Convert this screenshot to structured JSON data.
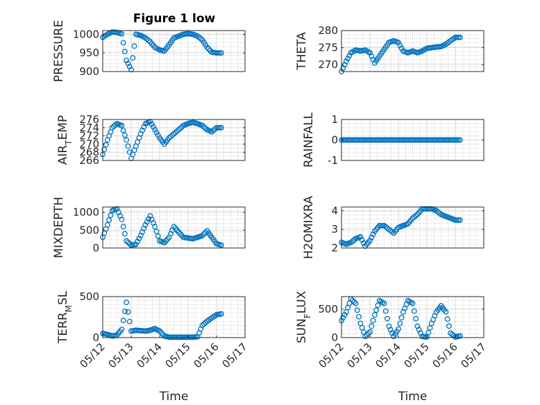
{
  "figure": {
    "title": "Figure 1 low"
  },
  "colors": {
    "marker": "#0072BD",
    "axes": "#262626",
    "grid": "#d9d9d9",
    "minor_grid": "#a6a6a6"
  },
  "chart_data": [
    {
      "type": "scatter",
      "title": "Figure 1 low",
      "xlabel": "",
      "ylabel": "PRESSURE",
      "xlim": [
        "05/12",
        "05/17"
      ],
      "ylim": [
        900,
        1010
      ],
      "yticks": [
        "900",
        "950",
        "1000"
      ],
      "grid": true,
      "x": [
        "05/12 00:00",
        "05/12 04:00",
        "05/12 08:00",
        "05/12 12:00",
        "05/12 16:00",
        "05/12 20:00",
        "05/13 00:00",
        "05/13 04:00",
        "05/13 08:00",
        "05/13 12:00",
        "05/13 16:00",
        "05/13 20:00",
        "05/14 00:00",
        "05/14 04:00",
        "05/14 08:00",
        "05/14 12:00",
        "05/14 16:00",
        "05/14 20:00",
        "05/15 00:00",
        "05/15 04:00",
        "05/15 08:00",
        "05/15 12:00",
        "05/15 16:00",
        "05/15 20:00",
        "05/16 00:00",
        "05/16 04:00"
      ],
      "y": [
        992,
        1000,
        1006,
        1005,
        1001,
        930,
        905,
        1000,
        997,
        990,
        980,
        965,
        958,
        955,
        972,
        990,
        995,
        1000,
        1002,
        1000,
        995,
        985,
        965,
        952,
        950,
        950
      ]
    },
    {
      "type": "scatter",
      "xlabel": "",
      "ylabel": "THETA",
      "xlim": [
        "05/12",
        "05/17"
      ],
      "ylim": [
        268,
        280
      ],
      "yticks": [
        "270",
        "275",
        "280"
      ],
      "grid": true,
      "x": [
        "05/12 00:00",
        "05/12 04:00",
        "05/12 08:00",
        "05/12 12:00",
        "05/12 16:00",
        "05/12 20:00",
        "05/13 00:00",
        "05/13 04:00",
        "05/13 08:00",
        "05/13 12:00",
        "05/13 16:00",
        "05/13 20:00",
        "05/14 00:00",
        "05/14 04:00",
        "05/14 08:00",
        "05/14 12:00",
        "05/14 16:00",
        "05/14 20:00",
        "05/15 00:00",
        "05/15 04:00",
        "05/15 08:00",
        "05/15 12:00",
        "05/15 16:00",
        "05/15 20:00",
        "05/16 00:00",
        "05/16 04:00"
      ],
      "y": [
        268,
        271,
        273.5,
        274.3,
        274.0,
        274.3,
        273.5,
        270.5,
        272.5,
        274.5,
        276.5,
        277.0,
        276.5,
        274.0,
        273.5,
        274.0,
        273.5,
        274.0,
        274.8,
        275.0,
        275.2,
        275.3,
        276.0,
        277.0,
        278.0,
        278.0
      ]
    },
    {
      "type": "scatter",
      "xlabel": "",
      "ylabel": "AIR_TEMP",
      "ylabel_parts": {
        "main": "AIR",
        "sub": "T",
        "rest": "EMP"
      },
      "xlim": [
        "05/12",
        "05/17"
      ],
      "ylim": [
        266,
        276
      ],
      "yticks": [
        "266",
        "268",
        "270",
        "272",
        "274",
        "276"
      ],
      "grid": true,
      "x": [
        "05/12 00:00",
        "05/12 04:00",
        "05/12 08:00",
        "05/12 12:00",
        "05/12 16:00",
        "05/12 20:00",
        "05/13 00:00",
        "05/13 04:00",
        "05/13 08:00",
        "05/13 12:00",
        "05/13 16:00",
        "05/13 20:00",
        "05/14 00:00",
        "05/14 04:00",
        "05/14 08:00",
        "05/14 12:00",
        "05/14 16:00",
        "05/14 20:00",
        "05/15 00:00",
        "05/15 04:00",
        "05/15 08:00",
        "05/15 12:00",
        "05/15 16:00",
        "05/15 20:00",
        "05/16 00:00",
        "05/16 04:00"
      ],
      "y": [
        267.5,
        271.0,
        274.0,
        275.0,
        274.5,
        271.0,
        266.5,
        269.5,
        272.5,
        275.0,
        275.5,
        273.5,
        271.5,
        270.0,
        271.5,
        272.5,
        273.5,
        274.5,
        275.0,
        275.3,
        275.0,
        274.5,
        273.5,
        273.0,
        274.0,
        274.0
      ]
    },
    {
      "type": "scatter",
      "xlabel": "",
      "ylabel": "RAINFALL",
      "xlim": [
        "05/12",
        "05/17"
      ],
      "ylim": [
        -1,
        1
      ],
      "yticks": [
        "-1",
        "0",
        "1"
      ],
      "grid": true,
      "x": [
        "05/12 00:00",
        "05/12 04:00",
        "05/12 08:00",
        "05/12 12:00",
        "05/12 16:00",
        "05/12 20:00",
        "05/13 00:00",
        "05/13 04:00",
        "05/13 08:00",
        "05/13 12:00",
        "05/13 16:00",
        "05/13 20:00",
        "05/14 00:00",
        "05/14 04:00",
        "05/14 08:00",
        "05/14 12:00",
        "05/14 16:00",
        "05/14 20:00",
        "05/15 00:00",
        "05/15 04:00",
        "05/15 08:00",
        "05/15 12:00",
        "05/15 16:00",
        "05/15 20:00",
        "05/16 00:00",
        "05/16 04:00"
      ],
      "y": [
        0,
        0,
        0,
        0,
        0,
        0,
        0,
        0,
        0,
        0,
        0,
        0,
        0,
        0,
        0,
        0,
        0,
        0,
        0,
        0,
        0,
        0,
        0,
        0,
        0,
        0
      ]
    },
    {
      "type": "scatter",
      "xlabel": "",
      "ylabel": "MIXDEPTH",
      "xlim": [
        "05/12",
        "05/17"
      ],
      "ylim": [
        0,
        1150
      ],
      "yticks": [
        "0",
        "500",
        "1000"
      ],
      "grid": true,
      "x": [
        "05/12 00:00",
        "05/12 04:00",
        "05/12 08:00",
        "05/12 12:00",
        "05/12 16:00",
        "05/12 20:00",
        "05/13 00:00",
        "05/13 04:00",
        "05/13 08:00",
        "05/13 12:00",
        "05/13 16:00",
        "05/13 20:00",
        "05/14 00:00",
        "05/14 04:00",
        "05/14 08:00",
        "05/14 12:00",
        "05/14 16:00",
        "05/14 20:00",
        "05/15 00:00",
        "05/15 04:00",
        "05/15 08:00",
        "05/15 12:00",
        "05/15 16:00",
        "05/15 20:00",
        "05/16 00:00",
        "05/16 04:00"
      ],
      "y": [
        300,
        650,
        1050,
        1100,
        800,
        200,
        80,
        100,
        350,
        650,
        900,
        600,
        200,
        150,
        300,
        600,
        450,
        300,
        280,
        260,
        300,
        350,
        480,
        300,
        120,
        80
      ]
    },
    {
      "type": "scatter",
      "xlabel": "",
      "ylabel": "H2OMIXRA",
      "xlim": [
        "05/12",
        "05/17"
      ],
      "ylim": [
        2,
        4.2
      ],
      "yticks": [
        "2",
        "3",
        "4"
      ],
      "grid": true,
      "x": [
        "05/12 00:00",
        "05/12 04:00",
        "05/12 08:00",
        "05/12 12:00",
        "05/12 16:00",
        "05/12 20:00",
        "05/13 00:00",
        "05/13 04:00",
        "05/13 08:00",
        "05/13 12:00",
        "05/13 16:00",
        "05/13 20:00",
        "05/14 00:00",
        "05/14 04:00",
        "05/14 08:00",
        "05/14 12:00",
        "05/14 16:00",
        "05/14 20:00",
        "05/15 00:00",
        "05/15 04:00",
        "05/15 08:00",
        "05/15 12:00",
        "05/15 16:00",
        "05/15 20:00",
        "05/16 00:00",
        "05/16 04:00"
      ],
      "y": [
        2.3,
        2.2,
        2.3,
        2.5,
        2.6,
        2.1,
        2.4,
        2.9,
        3.2,
        3.2,
        3.0,
        2.8,
        3.1,
        3.2,
        3.3,
        3.6,
        3.8,
        4.1,
        4.1,
        4.1,
        4.0,
        3.8,
        3.7,
        3.6,
        3.5,
        3.5
      ]
    },
    {
      "type": "scatter",
      "xlabel": "Time",
      "ylabel": "TERR_MSL",
      "ylabel_parts": {
        "main": "TERR",
        "sub": "M",
        "rest": "SL"
      },
      "xlim": [
        "05/12",
        "05/17"
      ],
      "ylim": [
        0,
        500
      ],
      "yticks": [
        "0",
        "500"
      ],
      "xticks": [
        "05/12",
        "05/13",
        "05/14",
        "05/15",
        "05/16",
        "05/17"
      ],
      "grid": true,
      "x": [
        "05/12 00:00",
        "05/12 04:00",
        "05/12 08:00",
        "05/12 12:00",
        "05/12 16:00",
        "05/12 20:00",
        "05/13 00:00",
        "05/13 04:00",
        "05/13 08:00",
        "05/13 12:00",
        "05/13 16:00",
        "05/13 20:00",
        "05/14 00:00",
        "05/14 04:00",
        "05/14 08:00",
        "05/14 12:00",
        "05/14 16:00",
        "05/14 20:00",
        "05/15 00:00",
        "05/15 04:00",
        "05/15 08:00",
        "05/15 12:00",
        "05/15 16:00",
        "05/15 20:00",
        "05/16 00:00",
        "05/16 04:00"
      ],
      "y": [
        50,
        40,
        20,
        30,
        100,
        430,
        80,
        90,
        85,
        80,
        90,
        110,
        80,
        20,
        5,
        5,
        5,
        5,
        5,
        5,
        10,
        150,
        200,
        240,
        280,
        290
      ]
    },
    {
      "type": "scatter",
      "xlabel": "Time",
      "ylabel": "SUN_FLUX",
      "ylabel_parts": {
        "main": "SUN",
        "sub": "F",
        "rest": "LUX"
      },
      "xlim": [
        "05/12",
        "05/17"
      ],
      "ylim": [
        0,
        720
      ],
      "yticks": [
        "0",
        "500"
      ],
      "xticks": [
        "05/12",
        "05/13",
        "05/14",
        "05/15",
        "05/16",
        "05/17"
      ],
      "grid": true,
      "x": [
        "05/12 00:00",
        "05/12 04:00",
        "05/12 08:00",
        "05/12 12:00",
        "05/12 16:00",
        "05/12 20:00",
        "05/13 00:00",
        "05/13 04:00",
        "05/13 08:00",
        "05/13 12:00",
        "05/13 16:00",
        "05/13 20:00",
        "05/14 00:00",
        "05/14 04:00",
        "05/14 08:00",
        "05/14 12:00",
        "05/14 16:00",
        "05/14 20:00",
        "05/15 00:00",
        "05/15 04:00",
        "05/15 08:00",
        "05/15 12:00",
        "05/15 16:00",
        "05/15 20:00",
        "05/16 00:00",
        "05/16 04:00"
      ],
      "y": [
        300,
        450,
        680,
        600,
        250,
        20,
        100,
        400,
        650,
        600,
        200,
        20,
        150,
        450,
        650,
        600,
        200,
        20,
        10,
        250,
        450,
        560,
        450,
        80,
        10,
        30
      ]
    }
  ]
}
